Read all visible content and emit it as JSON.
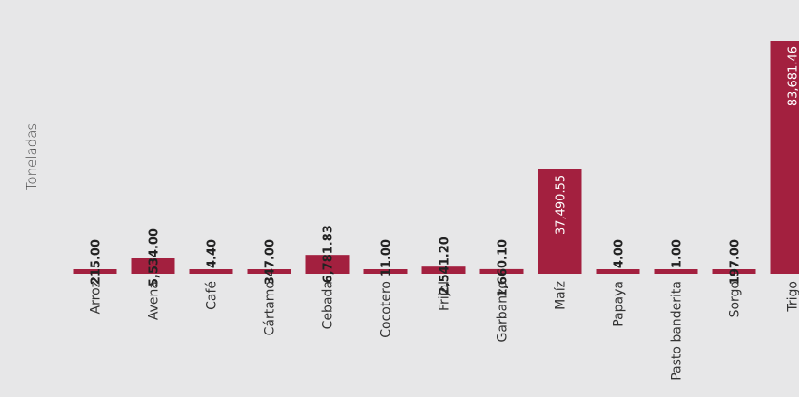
{
  "chart_data": {
    "type": "bar",
    "ylabel": "Toneladas",
    "xlabel": "",
    "title": "",
    "bar_color": "#a3203f",
    "background": "#e7e7e8",
    "categories": [
      "Arroz",
      "Avena",
      "Café",
      "Cártamo",
      "Cebada",
      "Cocotero",
      "Frijol",
      "Garbanzo",
      "Maíz",
      "Papaya",
      "Pasto banderita",
      "Sorgo",
      "Trigo"
    ],
    "values": [
      215.0,
      5534.0,
      4.4,
      347.0,
      6781.83,
      11.0,
      2541.2,
      1660.1,
      37490.55,
      4.0,
      1.0,
      197.0,
      83681.46
    ],
    "value_labels": [
      "215.00",
      "5,534.00",
      "4.40",
      "347.00",
      "6,781.83",
      "11.00",
      "2,541.20",
      "1,660.10",
      "37,490.55",
      "4.00",
      "1.00",
      "197.00",
      "83,681.46"
    ],
    "ylim": [
      0,
      83681.46
    ],
    "grid": false,
    "legend": "none"
  }
}
